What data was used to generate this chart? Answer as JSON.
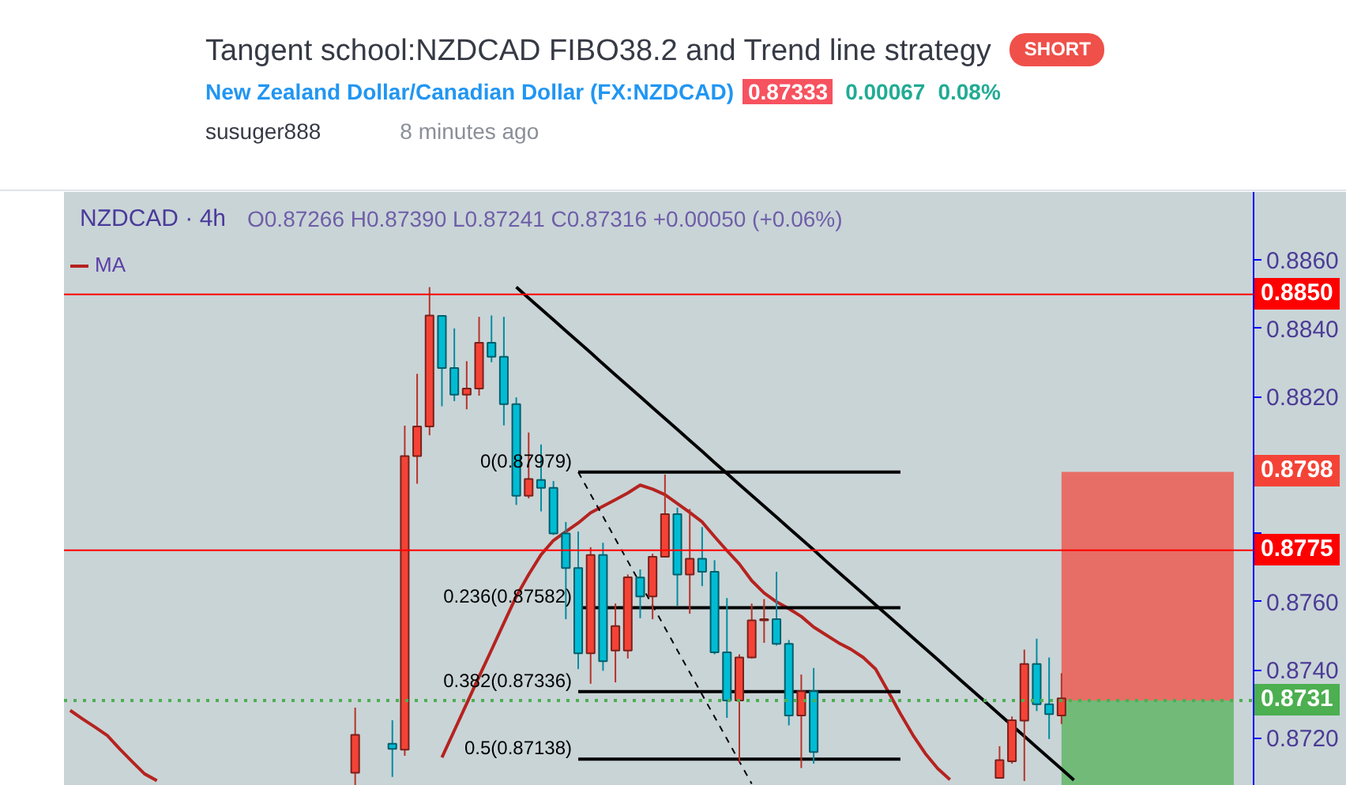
{
  "chart_data": {
    "type": "candlestick",
    "title": "Tangent school:NZDCAD FIBO38.2 and Trend line strategy",
    "subtitle": "New Zealand Dollar/Canadian Dollar (FX:NZDCAD)",
    "annotations": [
      "SHORT",
      "0.87333",
      "0.00067",
      "0.08%",
      "susuger888",
      "8 minutes ago",
      "NZDCAD · 4h",
      "O0.87266 H0.87390 L0.87241 C0.87316 +0.00050 (+0.06%)"
    ],
    "categories": [
      null,
      null,
      null,
      null,
      null,
      null,
      null,
      null,
      null,
      null,
      null,
      null,
      null,
      null,
      null,
      null,
      null,
      null,
      null,
      null,
      null,
      null,
      null,
      null,
      null,
      null,
      null,
      null,
      null,
      null,
      null,
      null,
      null,
      null,
      null,
      null,
      null,
      null,
      null,
      null,
      null,
      null,
      null,
      null,
      null,
      null,
      null,
      null,
      null,
      null,
      null,
      null,
      null,
      null,
      null,
      null,
      null,
      null,
      null,
      null,
      null,
      null,
      null,
      null,
      null,
      null,
      null,
      null,
      null,
      null,
      null,
      null,
      null,
      null,
      null,
      null,
      null,
      null,
      null,
      null,
      null,
      null,
      null,
      null,
      null,
      null,
      null,
      null,
      null,
      null,
      null,
      null,
      null,
      null,
      null,
      null
    ],
    "ohlc": [
      null,
      null,
      null,
      null,
      null,
      null,
      null,
      null,
      null,
      null,
      null,
      null,
      null,
      null,
      null,
      null,
      null,
      null,
      null,
      null,
      null,
      null,
      null,
      [
        0.87098,
        0.87289,
        0.8706,
        0.87209
      ],
      null,
      null,
      [
        0.87183,
        0.87252,
        0.87086,
        0.87168
      ],
      [
        0.87166,
        0.88115,
        0.87148,
        0.88026
      ],
      [
        0.88026,
        0.88267,
        0.87945,
        0.88113
      ],
      [
        0.88113,
        0.88521,
        0.88087,
        0.88438
      ],
      [
        0.88437,
        0.88437,
        0.88172,
        0.88284
      ],
      [
        0.88284,
        0.884,
        0.88187,
        0.88206
      ],
      [
        0.88206,
        0.88304,
        0.88163,
        0.88224
      ],
      [
        0.88224,
        0.88434,
        0.88203,
        0.88358
      ],
      [
        0.88358,
        0.88438,
        0.88301,
        0.88317
      ],
      [
        0.88317,
        0.88434,
        0.88116,
        0.88178
      ],
      [
        0.88178,
        0.88198,
        0.87883,
        0.8791
      ],
      [
        0.8791,
        0.88095,
        0.87902,
        0.87959
      ],
      [
        0.87956,
        0.8806,
        0.87864,
        0.87933
      ],
      [
        0.87933,
        0.87953,
        0.87795,
        0.87799
      ],
      [
        0.87799,
        0.87833,
        0.87548,
        0.87698
      ],
      [
        0.87698,
        0.87805,
        0.87402,
        0.87448
      ],
      [
        0.87448,
        0.87759,
        0.87359,
        0.87736
      ],
      [
        0.87736,
        0.87772,
        0.87397,
        0.87425
      ],
      [
        0.87456,
        0.87594,
        0.87363,
        0.87528
      ],
      [
        0.87456,
        0.87679,
        0.87433,
        0.87671
      ],
      [
        0.8767,
        0.87694,
        0.87551,
        0.87615
      ],
      [
        0.87615,
        0.8774,
        0.87548,
        0.87731
      ],
      [
        0.87731,
        0.87972,
        0.87731,
        0.87856
      ],
      [
        0.87856,
        0.87875,
        0.87587,
        0.87679
      ],
      [
        0.87679,
        0.87871,
        0.87564,
        0.87725
      ],
      [
        0.87725,
        0.87818,
        0.87645,
        0.87687
      ],
      [
        0.87687,
        0.87721,
        0.87445,
        0.87451
      ],
      [
        0.87451,
        0.8761,
        0.87259,
        0.8731
      ],
      [
        0.8731,
        0.87445,
        0.87128,
        0.87436
      ],
      [
        0.87436,
        0.87594,
        0.87433,
        0.87545
      ],
      [
        0.87545,
        0.87607,
        0.87479,
        0.87548
      ],
      [
        0.87548,
        0.87687,
        0.87471,
        0.87476
      ],
      [
        0.87476,
        0.87487,
        0.87237,
        0.87266
      ],
      [
        0.87266,
        0.87386,
        0.87112,
        0.87337
      ],
      [
        0.87337,
        0.87405,
        0.87125,
        0.87159
      ],
      null,
      null,
      null,
      null,
      null,
      null,
      null,
      null,
      null,
      null,
      null,
      null,
      null,
      null,
      [
        0.87083,
        0.87176,
        0.87083,
        0.87135
      ],
      [
        0.87132,
        0.87263,
        0.87125,
        0.87252
      ],
      [
        0.87251,
        0.87459,
        0.87074,
        0.87417
      ],
      [
        0.87417,
        0.87491,
        0.87279,
        0.87299
      ],
      [
        0.87299,
        0.87436,
        0.87197,
        0.8727
      ],
      [
        0.87266,
        0.8739,
        0.87241,
        0.87316
      ],
      null,
      null,
      null,
      null,
      null,
      null,
      null,
      null,
      null,
      null,
      null,
      null,
      null,
      null,
      null
    ],
    "colors": [
      null,
      null,
      null,
      null,
      null,
      null,
      null,
      null,
      null,
      null,
      null,
      null,
      null,
      null,
      null,
      null,
      null,
      null,
      null,
      null,
      null,
      null,
      null,
      "#f44336",
      null,
      null,
      "#00bcd4",
      "#f44336",
      "#f44336",
      "#f44336",
      "#00bcd4",
      "#00bcd4",
      "#f44336",
      "#f44336",
      "#00bcd4",
      "#00bcd4",
      "#00bcd4",
      "#f44336",
      "#00bcd4",
      "#00bcd4",
      "#00bcd4",
      "#00bcd4",
      "#f44336",
      "#00bcd4",
      "#f44336",
      "#f44336",
      "#00bcd4",
      "#f44336",
      "#f44336",
      "#00bcd4",
      "#f44336",
      "#00bcd4",
      "#00bcd4",
      "#00bcd4",
      "#f44336",
      "#f44336",
      "#f44336",
      "#00bcd4",
      "#00bcd4",
      "#f44336",
      "#00bcd4",
      null,
      null,
      null,
      null,
      null,
      null,
      null,
      null,
      null,
      null,
      null,
      null,
      null,
      null,
      "#f44336",
      "#f44336",
      "#f44336",
      "#00bcd4",
      "#00bcd4",
      "#f44336",
      null,
      null,
      null,
      null,
      null,
      null,
      null,
      null,
      null,
      null,
      null,
      null,
      null,
      null,
      null
    ],
    "series": [
      {
        "name": "MA",
        "type": "line",
        "color": "#b5231f",
        "values": [
          0.87281,
          0.87256,
          0.87232,
          0.87207,
          0.87168,
          0.87131,
          0.87095,
          0.87075,
          null,
          null,
          null,
          null,
          null,
          null,
          null,
          null,
          null,
          null,
          null,
          null,
          null,
          null,
          null,
          null,
          null,
          null,
          null,
          null,
          null,
          null,
          0.87143,
          0.87222,
          0.87301,
          0.8738,
          0.87458,
          0.87537,
          0.87615,
          0.87679,
          0.87737,
          0.87779,
          0.87805,
          0.8783,
          0.8786,
          0.87879,
          0.87898,
          0.87918,
          0.87941,
          0.87929,
          0.87913,
          0.87887,
          0.87861,
          0.87833,
          0.8779,
          0.87749,
          0.8771,
          0.87661,
          0.87625,
          0.87599,
          0.87579,
          0.87556,
          0.87525,
          0.87502,
          0.87479,
          0.8746,
          0.87436,
          0.87402,
          0.87337,
          0.87271,
          0.87209,
          0.87155,
          0.87111,
          0.87078,
          null,
          null,
          null,
          null,
          null,
          null,
          null,
          null,
          null,
          null,
          null,
          null,
          null,
          null,
          null,
          null,
          null,
          null,
          null,
          null,
          null,
          null,
          null,
          null
        ]
      },
      {
        "type": "line",
        "color": "#000000",
        "values": [
          null,
          null,
          null,
          null,
          null,
          null,
          null,
          null,
          null,
          null,
          null,
          null,
          null,
          null,
          null,
          null,
          null,
          null,
          null,
          null,
          null,
          null,
          null,
          null,
          null,
          null,
          null,
          null,
          null,
          null,
          null,
          null,
          null,
          null,
          null,
          null,
          0.88521,
          0.88489,
          0.88457,
          0.88425,
          0.88393,
          0.88361,
          0.88329,
          0.88296,
          0.88264,
          0.88232,
          0.882,
          0.88168,
          0.88136,
          0.88104,
          0.88072,
          0.8804,
          0.88007,
          0.87975,
          0.87943,
          0.87911,
          0.87879,
          0.87847,
          0.87815,
          0.87783,
          0.87751,
          0.87718,
          0.87686,
          0.87654,
          0.87622,
          0.8759,
          0.87558,
          0.87526,
          0.87494,
          0.87462,
          0.8743,
          0.87397,
          0.87365,
          0.87333,
          0.87301,
          0.87269,
          0.87237,
          0.87205,
          0.87173,
          0.87141,
          0.87109,
          0.87077,
          null,
          null,
          null,
          null,
          null,
          null,
          null,
          null,
          null,
          null,
          null,
          null,
          null,
          null
        ]
      },
      {
        "type": "line",
        "color": "#000000",
        "line_style": "dashed",
        "values": [
          null,
          null,
          null,
          null,
          null,
          null,
          null,
          null,
          null,
          null,
          null,
          null,
          null,
          null,
          null,
          null,
          null,
          null,
          null,
          null,
          null,
          null,
          null,
          null,
          null,
          null,
          null,
          null,
          null,
          null,
          null,
          null,
          null,
          null,
          null,
          null,
          null,
          null,
          null,
          null,
          null,
          0.87979,
          0.87914,
          0.87849,
          0.87783,
          0.87718,
          0.87653,
          0.87588,
          0.87523,
          0.87457,
          0.87392,
          0.87327,
          0.87262,
          0.87197,
          0.87131,
          0.87066,
          null,
          null,
          null,
          null,
          null,
          null,
          null,
          null,
          null,
          null,
          null,
          null,
          null,
          null,
          null,
          null,
          null,
          null,
          null,
          null,
          null,
          null,
          null,
          null,
          null,
          null,
          null,
          null,
          null,
          null,
          null,
          null,
          null,
          null,
          null,
          null,
          null,
          null,
          null,
          null
        ]
      },
      {
        "name": "0(0.87979)",
        "type": "line",
        "color": "#000000",
        "values": [
          null,
          null,
          null,
          null,
          null,
          null,
          null,
          null,
          null,
          null,
          null,
          null,
          null,
          null,
          null,
          null,
          null,
          null,
          null,
          null,
          null,
          null,
          null,
          null,
          null,
          null,
          null,
          null,
          null,
          null,
          null,
          null,
          null,
          null,
          null,
          null,
          null,
          null,
          null,
          null,
          null,
          0.87979,
          0.87979,
          0.87979,
          0.87979,
          0.87979,
          0.87979,
          0.87979,
          0.87979,
          0.87979,
          0.87979,
          0.87979,
          0.87979,
          0.87979,
          0.87979,
          0.87979,
          0.87979,
          0.87979,
          0.87979,
          0.87979,
          0.87979,
          0.87979,
          0.87979,
          0.87979,
          0.87979,
          0.87979,
          0.87979,
          0.87979,
          null,
          null,
          null,
          null,
          null,
          null,
          null,
          null,
          null,
          null,
          null,
          null,
          null,
          null,
          null,
          null,
          null,
          null,
          null,
          null,
          null,
          null,
          null,
          null,
          null,
          null,
          null,
          null
        ]
      },
      {
        "name": "0.236(0.87582)",
        "type": "line",
        "color": "#000000",
        "values": [
          null,
          null,
          null,
          null,
          null,
          null,
          null,
          null,
          null,
          null,
          null,
          null,
          null,
          null,
          null,
          null,
          null,
          null,
          null,
          null,
          null,
          null,
          null,
          null,
          null,
          null,
          null,
          null,
          null,
          null,
          null,
          null,
          null,
          null,
          null,
          null,
          null,
          null,
          null,
          null,
          null,
          0.87582,
          0.87582,
          0.87582,
          0.87582,
          0.87582,
          0.87582,
          0.87582,
          0.87582,
          0.87582,
          0.87582,
          0.87582,
          0.87582,
          0.87582,
          0.87582,
          0.87582,
          0.87582,
          0.87582,
          0.87582,
          0.87582,
          0.87582,
          0.87582,
          0.87582,
          0.87582,
          0.87582,
          0.87582,
          0.87582,
          0.87582,
          null,
          null,
          null,
          null,
          null,
          null,
          null,
          null,
          null,
          null,
          null,
          null,
          null,
          null,
          null,
          null,
          null,
          null,
          null,
          null,
          null,
          null,
          null,
          null,
          null,
          null,
          null,
          null
        ]
      },
      {
        "name": "0.382(0.87336)",
        "type": "line",
        "color": "#000000",
        "values": [
          null,
          null,
          null,
          null,
          null,
          null,
          null,
          null,
          null,
          null,
          null,
          null,
          null,
          null,
          null,
          null,
          null,
          null,
          null,
          null,
          null,
          null,
          null,
          null,
          null,
          null,
          null,
          null,
          null,
          null,
          null,
          null,
          null,
          null,
          null,
          null,
          null,
          null,
          null,
          null,
          null,
          0.87336,
          0.87336,
          0.87336,
          0.87336,
          0.87336,
          0.87336,
          0.87336,
          0.87336,
          0.87336,
          0.87336,
          0.87336,
          0.87336,
          0.87336,
          0.87336,
          0.87336,
          0.87336,
          0.87336,
          0.87336,
          0.87336,
          0.87336,
          0.87336,
          0.87336,
          0.87336,
          0.87336,
          0.87336,
          0.87336,
          0.87336,
          null,
          null,
          null,
          null,
          null,
          null,
          null,
          null,
          null,
          null,
          null,
          null,
          null,
          null,
          null,
          null,
          null,
          null,
          null,
          null,
          null,
          null,
          null,
          null,
          null,
          null,
          null,
          null
        ]
      },
      {
        "name": "0.5(0.87138)",
        "type": "line",
        "color": "#000000",
        "values": [
          null,
          null,
          null,
          null,
          null,
          null,
          null,
          null,
          null,
          null,
          null,
          null,
          null,
          null,
          null,
          null,
          null,
          null,
          null,
          null,
          null,
          null,
          null,
          null,
          null,
          null,
          null,
          null,
          null,
          null,
          null,
          null,
          null,
          null,
          null,
          null,
          null,
          null,
          null,
          null,
          null,
          0.87138,
          0.87138,
          0.87138,
          0.87138,
          0.87138,
          0.87138,
          0.87138,
          0.87138,
          0.87138,
          0.87138,
          0.87138,
          0.87138,
          0.87138,
          0.87138,
          0.87138,
          0.87138,
          0.87138,
          0.87138,
          0.87138,
          0.87138,
          0.87138,
          0.87138,
          0.87138,
          0.87138,
          0.87138,
          0.87138,
          0.87138,
          null,
          null,
          null,
          null,
          null,
          null,
          null,
          null,
          null,
          null,
          null,
          null,
          null,
          null,
          null,
          null,
          null,
          null,
          null,
          null,
          null,
          null,
          null,
          null,
          null,
          null,
          null,
          null
        ]
      }
    ],
    "ylim": [
      0.8706,
      0.888
    ],
    "yticks": [
      {
        "value": 0.872,
        "label": "0.8720"
      },
      {
        "value": 0.874,
        "label": "0.8740"
      },
      {
        "value": 0.876,
        "label": "0.8760"
      },
      {
        "value": 0.878,
        "label": null
      },
      {
        "value": 0.88,
        "label": null
      },
      {
        "value": 0.882,
        "label": "0.8820"
      },
      {
        "value": 0.884,
        "label": "0.8840"
      },
      {
        "value": 0.886,
        "label": "0.8860"
      }
    ],
    "ref_lines": [
      {
        "axis": "y",
        "value": 0.885,
        "label": "0.8850",
        "color": "#ff0000"
      },
      {
        "axis": "y",
        "value": 0.8775,
        "label": "0.8775",
        "color": "#ff0000"
      },
      {
        "axis": "y",
        "value": 0.8731,
        "label": "0.8731",
        "color": "#4caf50",
        "line_style": "dotted"
      }
    ],
    "bands": [
      {
        "axis": "y",
        "from": 0.8731,
        "to": 0.8798,
        "label": "0.8798",
        "color": "#f44336"
      },
      {
        "axis": "y",
        "from": 0.8706,
        "to": 0.8731,
        "color": "#4caf50"
      }
    ],
    "grid": false,
    "legend": "top left",
    "tick_labels": "y"
  }
}
